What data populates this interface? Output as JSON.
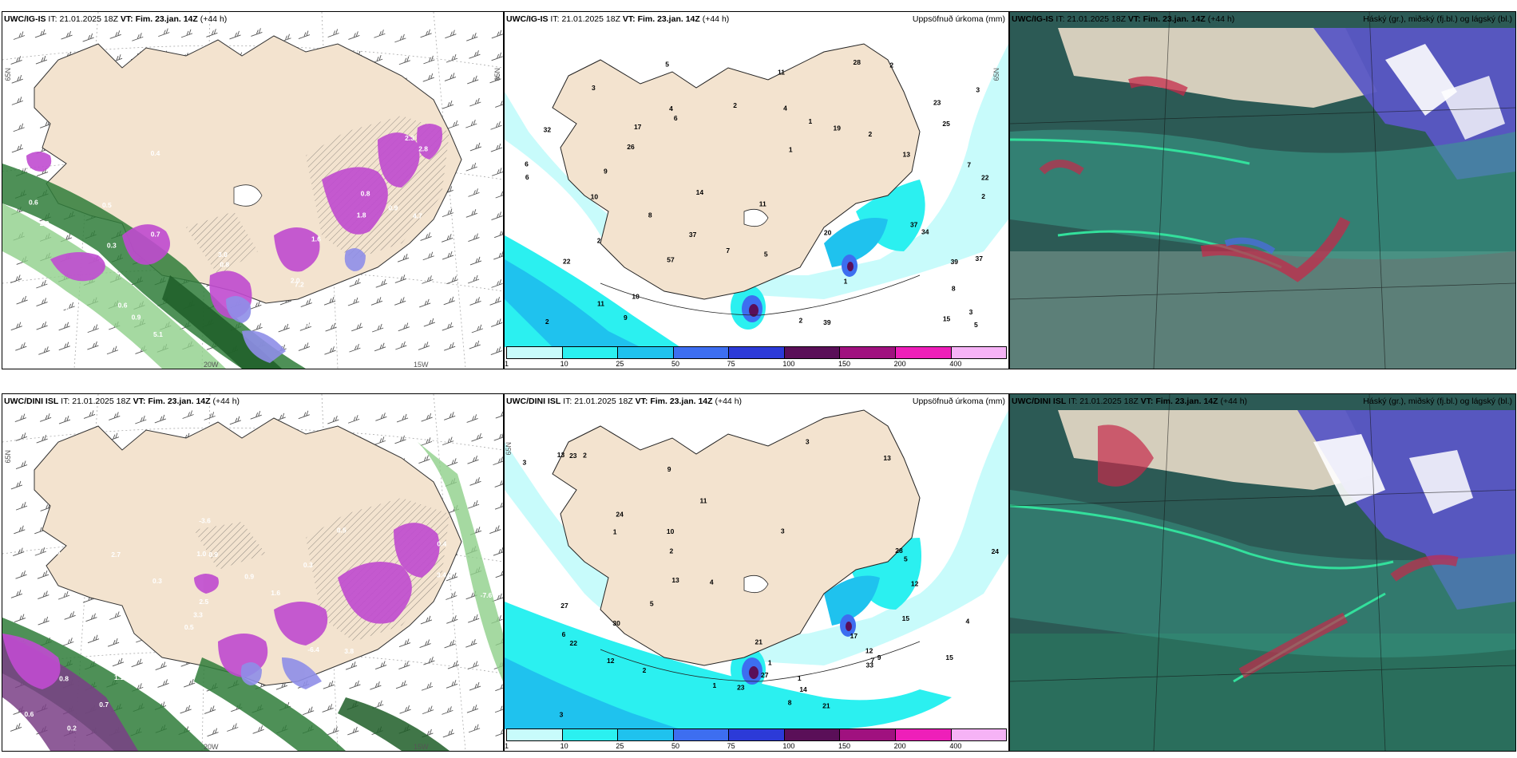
{
  "panels": {
    "p1": {
      "model": "UWC/IG-IS",
      "it_label": "IT:",
      "it": "21.01.2025 18Z",
      "vt_label": "VT: Fim. 23.jan. 14Z",
      "lead": "(+44 h)",
      "lat": "65N",
      "lon_a": "15W",
      "lon_b": "20W"
    },
    "p2": {
      "model": "UWC/IG-IS",
      "it_label": "IT:",
      "it": "21.01.2025 18Z",
      "vt_label": "VT: Fim. 23.jan. 14Z",
      "lead": "(+44 h)",
      "right": "Uppsöfnuð úrkoma (mm)",
      "lat": "65N"
    },
    "p3": {
      "model": "UWC/IG-IS",
      "it_label": "IT:",
      "it": "21.01.2025 18Z",
      "vt_label": "VT: Fim. 23.jan. 14Z",
      "lead": "(+44 h)",
      "right": "Háský (gr.), miðský (fj.bl.) og lágský (bl.)"
    },
    "p4": {
      "model": "UWC/DINI ISL",
      "it_label": "IT:",
      "it": "21.01.2025 18Z",
      "vt_label": "VT: Fim. 23.jan. 14Z",
      "lead": "(+44 h)",
      "lat": "65N",
      "lon_a": "15W",
      "lon_b": "20W"
    },
    "p5": {
      "model": "UWC/DINI ISL",
      "it_label": "IT:",
      "it": "21.01.2025 18Z",
      "vt_label": "VT: Fim. 23.jan. 14Z",
      "lead": "(+44 h)",
      "right": "Uppsöfnuð úrkoma (mm)",
      "lat": "65N"
    },
    "p6": {
      "model": "UWC/DINI ISL",
      "it_label": "IT:",
      "it": "21.01.2025 18Z",
      "vt_label": "VT: Fim. 23.jan. 14Z",
      "lead": "(+44 h)",
      "right": "Háský (gr.), miðský (fj.bl.) og lágský (bl.)"
    }
  },
  "legend": {
    "ticks": [
      "1",
      "10",
      "25",
      "50",
      "75",
      "100",
      "150",
      "200",
      "400"
    ],
    "colors": [
      "#c8fbfb",
      "#2bf0f0",
      "#1fc2ee",
      "#3d6ef0",
      "#2c3ad8",
      "#5a0f58",
      "#a0117f",
      "#ee1fb9",
      "#f6b3f6"
    ]
  },
  "precip_top": [
    "6",
    "7",
    "19",
    "22",
    "14",
    "37",
    "37",
    "28",
    "39",
    "23",
    "26",
    "34",
    "13",
    "57",
    "22",
    "11",
    "8",
    "6",
    "5",
    "2",
    "3",
    "4",
    "11",
    "2",
    "1",
    "2",
    "2",
    "1",
    "2",
    "3",
    "9",
    "5",
    "10",
    "11",
    "9",
    "6",
    "2",
    "20",
    "25",
    "37",
    "39",
    "32",
    "7",
    "5",
    "8",
    "3",
    "1",
    "2",
    "4",
    "10",
    "15",
    "17"
  ],
  "precip_bot": [
    "1",
    "1",
    "3",
    "3",
    "24",
    "22",
    "27",
    "27",
    "28",
    "24",
    "30",
    "15",
    "23",
    "21",
    "13",
    "14",
    "12",
    "7",
    "4",
    "5",
    "2",
    "12",
    "1",
    "2",
    "1",
    "2",
    "3",
    "8",
    "9",
    "10",
    "13",
    "17",
    "15",
    "21",
    "33",
    "11",
    "23",
    "9",
    "4",
    "5",
    "3",
    "12",
    "13",
    "6"
  ],
  "wind_top": [
    "0.5",
    "0.4",
    "0.6",
    "0.5",
    "0.9",
    "0.6",
    "1.0",
    "0.7",
    "0.8",
    "0.9",
    "0.5",
    "0.6",
    "3.0",
    "2.0",
    "1.8",
    "2.3",
    "2.9",
    "2.8",
    "6.5",
    "4.7",
    "3.9",
    "7.2",
    "5.1",
    "3.8",
    "1.6",
    "0.8",
    "0.3"
  ],
  "wind_bot": [
    "0.7",
    "0.8",
    "0.4",
    "0.5",
    "0.3",
    "0.2",
    "1.0",
    "0.9",
    "0.8",
    "0.3",
    "0.6",
    "0.7",
    "0.9",
    "1.6",
    "3.8",
    "1.3",
    "-3.6",
    "-7.6",
    "-6.4",
    "3.4",
    "3.3",
    "2.1",
    "2.5",
    "2.7",
    "0.5",
    "1.1"
  ]
}
